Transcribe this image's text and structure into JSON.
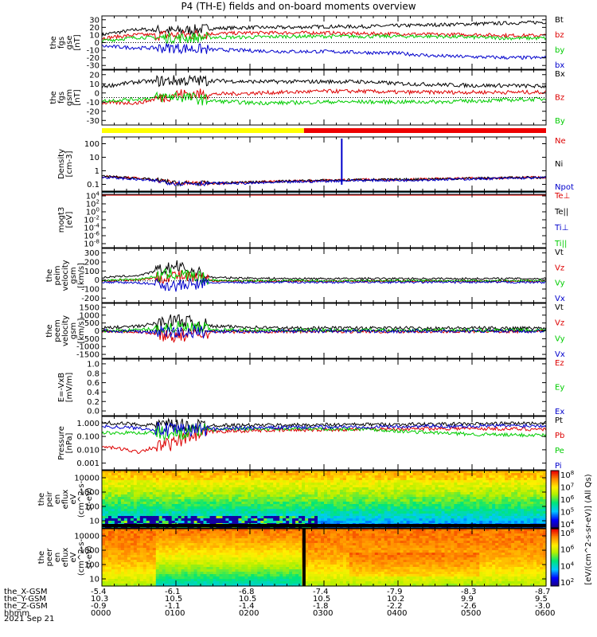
{
  "title": "P4 (TH-E) fields and on-board moments overview",
  "date_label": "2021 Sep 21",
  "colors": {
    "black": "#000000",
    "red": "#dd0000",
    "green": "#00cc00",
    "blue": "#0000cc",
    "yellow": "#ffff00"
  },
  "mode_bar": {
    "segments": [
      {
        "from": 0.0,
        "to": 0.455,
        "color": "#ffff00"
      },
      {
        "from": 0.455,
        "to": 1.0,
        "color": "#ee0000"
      }
    ]
  },
  "colorbar": {
    "label": "[eV/(cm^2-s-sr-eV)] (All Qs)",
    "upper_ticks": [
      "10^8",
      "10^7",
      "10^6",
      "10^5",
      "10^4"
    ],
    "lower_ticks": [
      "10^8",
      "10^6",
      "10^4",
      "10^2"
    ]
  },
  "panels": [
    {
      "ylabel": [
        "the",
        "fgs",
        "gse",
        "[nT]"
      ],
      "yticks": [
        "30",
        "20",
        "10",
        "0",
        "-10",
        "-20",
        "-30"
      ],
      "legend": [
        {
          "text": "Bt",
          "color": "#000000"
        },
        {
          "text": "bz",
          "color": "#dd0000"
        },
        {
          "text": "by",
          "color": "#00cc00"
        },
        {
          "text": "bx",
          "color": "#0000cc"
        }
      ]
    },
    {
      "ylabel": [
        "the",
        "fgs",
        "gsm",
        "[nT]"
      ],
      "yticks": [
        "20",
        "10",
        "0",
        "-10",
        "-20",
        "-30"
      ],
      "legend": [
        {
          "text": "Bx",
          "color": "#000000"
        },
        {
          "text": "Bz",
          "color": "#dd0000"
        },
        {
          "text": "By",
          "color": "#00cc00"
        }
      ]
    },
    {
      "ylabel": [
        "Density",
        "[cm-3]"
      ],
      "yticks": [
        "100",
        "10",
        "1",
        "0.1"
      ],
      "legend": [
        {
          "text": "Ne",
          "color": "#dd0000"
        },
        {
          "text": "Ni",
          "color": "#000000"
        },
        {
          "text": "Npot",
          "color": "#0000cc"
        }
      ]
    },
    {
      "ylabel": [
        "mogt3",
        "[eV]"
      ],
      "yticks": [
        "10^4",
        "10^2",
        "10^0",
        "10^-2",
        "10^-4",
        "10^-6",
        "10^-8"
      ],
      "legend": [
        {
          "text": "Te⊥",
          "color": "#dd0000"
        },
        {
          "text": "Te||",
          "color": "#000000"
        },
        {
          "text": "Ti⊥",
          "color": "#0000cc"
        },
        {
          "text": "Ti||",
          "color": "#00cc00"
        }
      ]
    },
    {
      "ylabel": [
        "the",
        "peim",
        "velocity",
        "gsm",
        "[km/s]"
      ],
      "yticks": [
        "300",
        "200",
        "100",
        "0",
        "-100",
        "-200"
      ],
      "legend": [
        {
          "text": "Vt",
          "color": "#000000"
        },
        {
          "text": "Vz",
          "color": "#dd0000"
        },
        {
          "text": "Vy",
          "color": "#00cc00"
        },
        {
          "text": "Vx",
          "color": "#0000cc"
        }
      ]
    },
    {
      "ylabel": [
        "the",
        "peem",
        "velocity",
        "gsm",
        "[km/s]"
      ],
      "yticks": [
        "1500",
        "1000",
        "500",
        "0",
        "-500",
        "-1000",
        "-1500"
      ],
      "legend": [
        {
          "text": "Vt",
          "color": "#000000"
        },
        {
          "text": "Vz",
          "color": "#dd0000"
        },
        {
          "text": "Vy",
          "color": "#00cc00"
        },
        {
          "text": "Vx",
          "color": "#0000cc"
        }
      ]
    },
    {
      "ylabel": [
        "E=-VxB",
        "[mV/m]"
      ],
      "yticks": [
        "1.0",
        "0.8",
        "0.6",
        "0.4",
        "0.2",
        "0.0"
      ],
      "legend": [
        {
          "text": "Ez",
          "color": "#dd0000"
        },
        {
          "text": "Ey",
          "color": "#00cc00"
        },
        {
          "text": "Ex",
          "color": "#0000cc"
        }
      ]
    },
    {
      "ylabel": [
        "Pressure",
        "[nPa]"
      ],
      "yticks": [
        "1.000",
        "0.100",
        "0.010",
        "0.001"
      ],
      "legend": [
        {
          "text": "Pt",
          "color": "#000000"
        },
        {
          "text": "Pb",
          "color": "#dd0000"
        },
        {
          "text": "Pe",
          "color": "#00cc00"
        },
        {
          "text": "Pi",
          "color": "#0000cc"
        }
      ]
    },
    {
      "ylabel": [
        "the",
        "peir",
        "en",
        "eflux",
        "eV",
        "(cm^2-s-",
        "sr-eV)"
      ],
      "yticks": [
        "10000",
        "1000",
        "100",
        "10"
      ],
      "legend": []
    },
    {
      "ylabel": [
        "the",
        "peer",
        "en",
        "eflux",
        "eV",
        "(cm^2-s-",
        "sr-eV)"
      ],
      "yticks": [
        "10000",
        "1000",
        "100",
        "10"
      ],
      "legend": []
    }
  ],
  "footer": {
    "rows": [
      {
        "label": "the_X-GSM",
        "values": [
          "-5.4",
          "-6.1",
          "-6.8",
          "-7.4",
          "-7.9",
          "-8.3",
          "-8.7"
        ]
      },
      {
        "label": "the_Y-GSM",
        "values": [
          "10.3",
          "10.5",
          "10.5",
          "10.5",
          "10.2",
          "9.9",
          "9.5"
        ]
      },
      {
        "label": "the_Z-GSM",
        "values": [
          "-0.9",
          "-1.1",
          "-1.4",
          "-1.8",
          "-2.2",
          "-2.6",
          "-3.0"
        ]
      },
      {
        "label": "hhmm",
        "values": [
          "0000",
          "0100",
          "0200",
          "0300",
          "0400",
          "0500",
          "0600"
        ]
      }
    ]
  },
  "chart_data": [
    {
      "type": "line",
      "title": "P4 (TH-E) fields and on-board moments overview",
      "ylabel": "the fgs gse [nT]",
      "x": [
        "0000",
        "0030",
        "0100",
        "0130",
        "0200",
        "0230",
        "0300",
        "0330",
        "0400",
        "0430",
        "0500",
        "0530",
        "0600"
      ],
      "ylim": [
        -30,
        30
      ],
      "series": [
        {
          "name": "Bt",
          "values": [
            9,
            15,
            13,
            16,
            17,
            17,
            18,
            18,
            19,
            20,
            21,
            22,
            23
          ]
        },
        {
          "name": "bz",
          "values": [
            5,
            9,
            8,
            10,
            11,
            11,
            11,
            10,
            10,
            9,
            9,
            8,
            8
          ]
        },
        {
          "name": "by",
          "values": [
            2,
            6,
            5,
            6,
            6,
            7,
            7,
            7,
            7,
            7,
            6,
            5,
            5
          ]
        },
        {
          "name": "bx",
          "values": [
            -4,
            -6,
            -6,
            -8,
            -9,
            -10,
            -10,
            -11,
            -12,
            -15,
            -16,
            -17,
            -17
          ]
        }
      ]
    },
    {
      "type": "line",
      "ylabel": "the fgs gsm [nT]",
      "x": [
        "0000",
        "0030",
        "0100",
        "0130",
        "0200",
        "0230",
        "0300",
        "0330",
        "0400",
        "0430",
        "0500",
        "0530",
        "0600"
      ],
      "ylim": [
        -35,
        22
      ],
      "series": [
        {
          "name": "Bx",
          "values": [
            5,
            10,
            11,
            11,
            10,
            10,
            10,
            10,
            8,
            7,
            6,
            6,
            5
          ]
        },
        {
          "name": "Bz",
          "values": [
            -12,
            -12,
            -3,
            -3,
            -2,
            -1,
            0,
            0,
            -1,
            -1,
            -1,
            -1,
            -1
          ]
        },
        {
          "name": "By",
          "values": [
            -10,
            -8,
            -5,
            -10,
            -12,
            -12,
            -11,
            -11,
            -11,
            -11,
            -10,
            -9,
            -8
          ]
        }
      ]
    },
    {
      "type": "line",
      "ylabel": "Density [cm-3]",
      "log": true,
      "x": [
        "0000",
        "0030",
        "0100",
        "0130",
        "0200",
        "0230",
        "0300",
        "0330",
        "0400",
        "0430",
        "0500",
        "0530",
        "0600"
      ],
      "ylim": [
        0.1,
        200
      ],
      "series": [
        {
          "name": "Ne",
          "values": [
            0.8,
            0.6,
            0.3,
            0.3,
            0.35,
            0.4,
            0.45,
            0.5,
            0.5,
            0.55,
            0.6,
            0.65,
            0.7
          ]
        },
        {
          "name": "Ni",
          "values": [
            0.8,
            0.6,
            0.3,
            0.3,
            0.35,
            0.4,
            0.45,
            0.5,
            0.5,
            0.55,
            0.6,
            0.65,
            0.7
          ]
        },
        {
          "name": "Npot",
          "values": [
            0.7,
            0.5,
            0.3,
            0.3,
            0.3,
            0.35,
            0.4,
            0.45,
            0.45,
            0.5,
            0.55,
            0.6,
            0.65
          ]
        }
      ]
    },
    {
      "type": "line",
      "ylabel": "mogt3 [eV]",
      "log": true,
      "x": [
        "0000",
        "0300",
        "0600"
      ],
      "ylim": [
        1e-08,
        10000.0
      ],
      "series": [
        {
          "name": "Te⊥",
          "values": [
            2000,
            2000,
            2000
          ]
        },
        {
          "name": "Te||",
          "values": [
            3000,
            3000,
            3000
          ]
        },
        {
          "name": "Ti⊥",
          "values": [
            8000,
            8000,
            8000
          ]
        },
        {
          "name": "Ti||",
          "values": [
            9000,
            9000,
            9000
          ]
        }
      ]
    },
    {
      "type": "line",
      "ylabel": "the peim velocity gsm [km/s]",
      "x": [
        "0000",
        "0030",
        "0100",
        "0130",
        "0200",
        "0230",
        "0300",
        "0330",
        "0400",
        "0430",
        "0500",
        "0530",
        "0600"
      ],
      "ylim": [
        -200,
        320
      ],
      "series": [
        {
          "name": "Vt",
          "values": [
            40,
            60,
            150,
            40,
            35,
            30,
            30,
            30,
            30,
            30,
            30,
            30,
            30
          ]
        },
        {
          "name": "Vz",
          "values": [
            10,
            20,
            60,
            10,
            5,
            5,
            5,
            5,
            5,
            5,
            5,
            5,
            5
          ]
        },
        {
          "name": "Vy",
          "values": [
            15,
            25,
            80,
            15,
            10,
            10,
            10,
            10,
            10,
            10,
            10,
            10,
            10
          ]
        },
        {
          "name": "Vx",
          "values": [
            -5,
            -10,
            -40,
            -10,
            -5,
            -5,
            -5,
            -5,
            -5,
            -5,
            -5,
            -5,
            -5
          ]
        }
      ]
    },
    {
      "type": "line",
      "ylabel": "the peem velocity gsm [km/s]",
      "x": [
        "0000",
        "0030",
        "0100",
        "0130",
        "0200",
        "0230",
        "0300",
        "0330",
        "0400",
        "0430",
        "0500",
        "0530",
        "0600"
      ],
      "ylim": [
        -1500,
        1500
      ],
      "series": [
        {
          "name": "Vt",
          "values": [
            150,
            250,
            600,
            250,
            200,
            150,
            150,
            150,
            150,
            150,
            150,
            150,
            150
          ]
        },
        {
          "name": "Vz",
          "values": [
            0,
            -50,
            -300,
            -50,
            -50,
            -30,
            -30,
            -30,
            -30,
            -30,
            -30,
            -30,
            -30
          ]
        },
        {
          "name": "Vy",
          "values": [
            0,
            50,
            200,
            50,
            50,
            30,
            30,
            30,
            30,
            30,
            30,
            30,
            30
          ]
        },
        {
          "name": "Vx",
          "values": [
            0,
            -50,
            -100,
            -30,
            -30,
            -20,
            -20,
            -20,
            -20,
            -20,
            -20,
            -20,
            -20
          ]
        }
      ]
    },
    {
      "type": "line",
      "ylabel": "E=-VxB [mV/m]",
      "x": [],
      "ylim": [
        0,
        1
      ],
      "series": []
    },
    {
      "type": "line",
      "ylabel": "Pressure [nPa]",
      "log": true,
      "x": [
        "0000",
        "0030",
        "0100",
        "0130",
        "0200",
        "0230",
        "0300",
        "0330",
        "0400",
        "0430",
        "0500",
        "0530",
        "0600"
      ],
      "ylim": [
        0.001,
        1
      ],
      "series": [
        {
          "name": "Pt",
          "values": [
            0.45,
            0.35,
            0.3,
            0.32,
            0.32,
            0.33,
            0.34,
            0.35,
            0.36,
            0.37,
            0.38,
            0.4,
            0.42
          ]
        },
        {
          "name": "Pb",
          "values": [
            0.02,
            0.01,
            0.03,
            0.14,
            0.16,
            0.17,
            0.18,
            0.19,
            0.2,
            0.21,
            0.21,
            0.2,
            0.19
          ]
        },
        {
          "name": "Pe",
          "values": [
            0.12,
            0.12,
            0.12,
            0.18,
            0.2,
            0.2,
            0.2,
            0.2,
            0.15,
            0.12,
            0.1,
            0.09,
            0.09
          ]
        },
        {
          "name": "Pi",
          "values": [
            0.28,
            0.22,
            0.16,
            0.2,
            0.22,
            0.24,
            0.25,
            0.26,
            0.27,
            0.28,
            0.29,
            0.3,
            0.3
          ]
        }
      ]
    },
    {
      "type": "heatmap",
      "ylabel": "the peir en eflux eV (cm^2-s-sr-eV)",
      "log": true,
      "x": [
        "0000",
        "0100",
        "0200",
        "0300",
        "0400",
        "0500",
        "0600"
      ],
      "ylim": [
        5,
        20000
      ]
    },
    {
      "type": "heatmap",
      "ylabel": "the peer en eflux eV (cm^2-s-sr-eV)",
      "log": true,
      "x": [
        "0000",
        "0100",
        "0200",
        "0300",
        "0400",
        "0500",
        "0600"
      ],
      "ylim": [
        8,
        20000
      ]
    }
  ]
}
